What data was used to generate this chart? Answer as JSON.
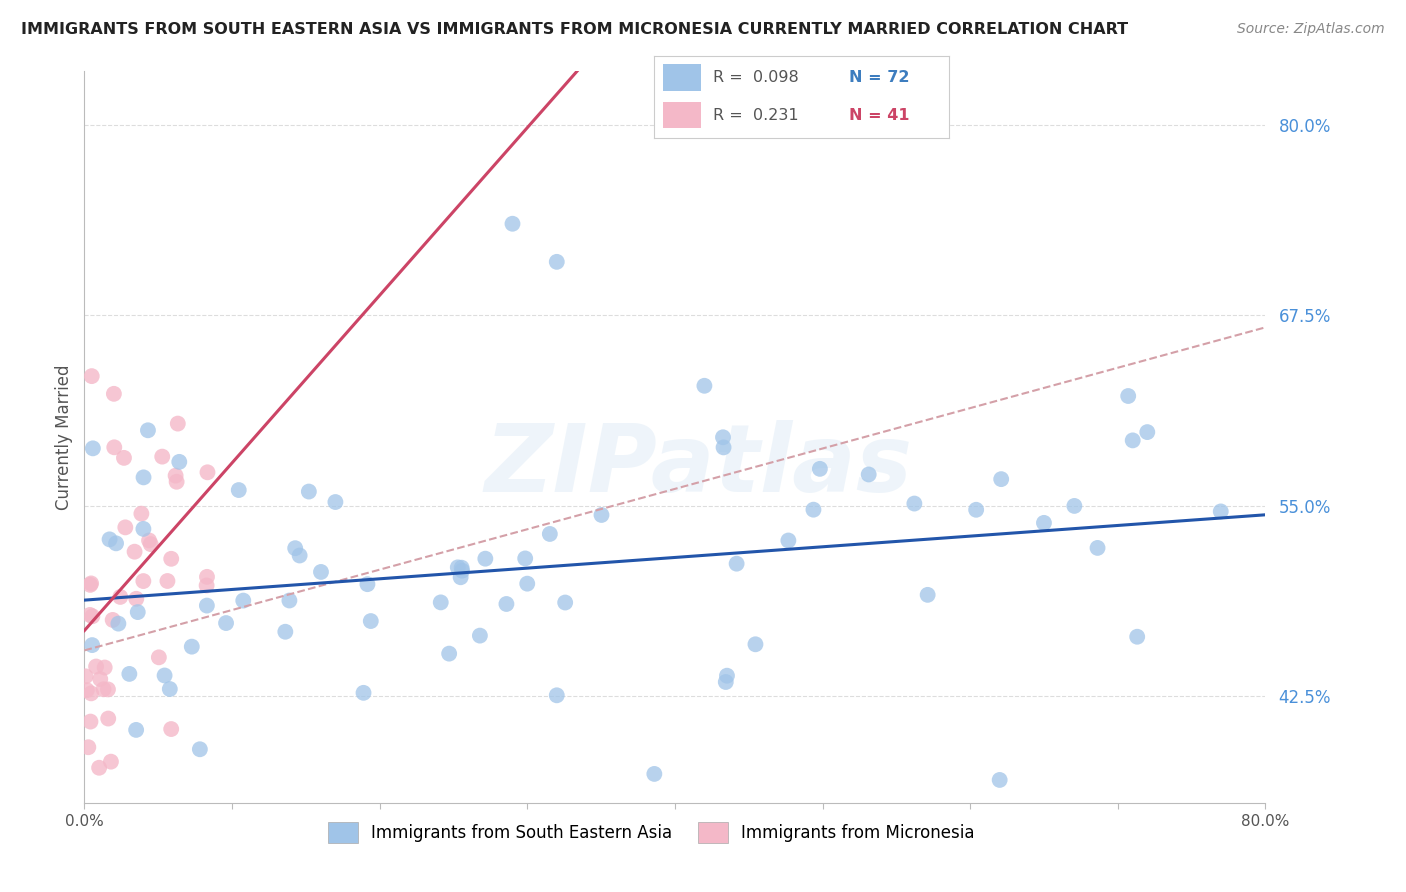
{
  "title": "IMMIGRANTS FROM SOUTH EASTERN ASIA VS IMMIGRANTS FROM MICRONESIA CURRENTLY MARRIED CORRELATION CHART",
  "source": "Source: ZipAtlas.com",
  "ylabel": "Currently Married",
  "xlim": [
    0.0,
    0.8
  ],
  "ylim": [
    0.355,
    0.835
  ],
  "y_ticks": [
    0.425,
    0.55,
    0.675,
    0.8
  ],
  "watermark": "ZIPatlas",
  "legend_series1_label": "Immigrants from South Eastern Asia",
  "legend_series1_R": "R =  0.098",
  "legend_series1_N": "N = 72",
  "legend_series2_label": "Immigrants from Micronesia",
  "legend_series2_R": "R =  0.231",
  "legend_series2_N": "N = 41",
  "blue_color": "#a0c4e8",
  "pink_color": "#f4b8c8",
  "blue_line_color": "#2255aa",
  "pink_line_color": "#cc4466",
  "dashed_line_color": "#d4a0a8",
  "background_color": "#ffffff",
  "grid_color": "#dddddd",
  "blue_line_intercept": 0.488,
  "blue_line_slope": 0.07,
  "pink_line_intercept": 0.468,
  "pink_line_slope": 1.1,
  "dashed_line_intercept": 0.455,
  "dashed_line_slope": 0.265
}
